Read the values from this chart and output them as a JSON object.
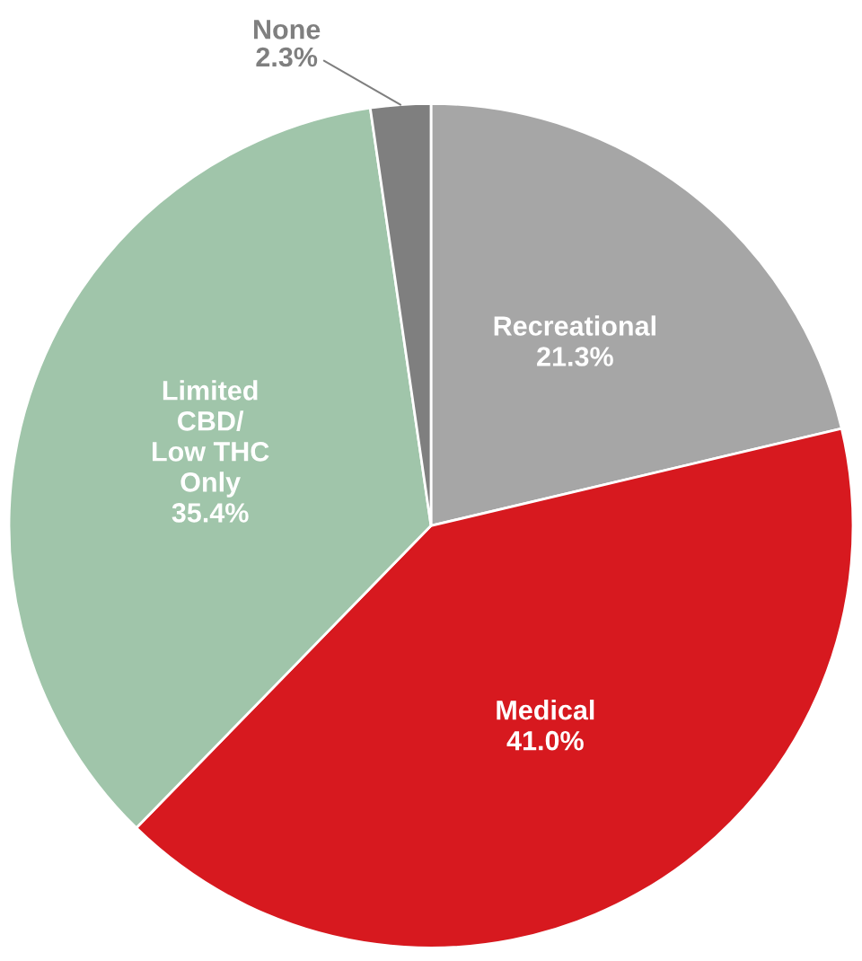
{
  "chart_data": {
    "type": "pie",
    "categories": [
      "Recreational",
      "Medical",
      "Limited\nCBD/\nLow THC\nOnly",
      "None"
    ],
    "values": [
      21.3,
      41.0,
      35.4,
      2.3
    ],
    "colors": [
      "#a6a6a6",
      "#d7191f",
      "#a0c5aa",
      "#7f7f7f"
    ],
    "value_labels": [
      "21.3%",
      "41.0%",
      "35.4%",
      "2.3%"
    ],
    "legend": false
  }
}
